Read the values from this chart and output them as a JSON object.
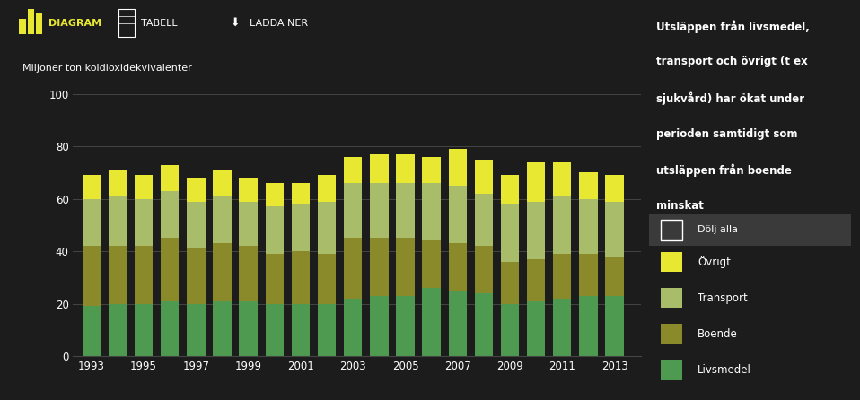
{
  "years": [
    1993,
    1994,
    1995,
    1996,
    1997,
    1998,
    1999,
    2000,
    2001,
    2002,
    2003,
    2004,
    2005,
    2006,
    2007,
    2008,
    2009,
    2010,
    2011,
    2012,
    2013
  ],
  "livsmedel": [
    19,
    20,
    20,
    21,
    20,
    21,
    21,
    20,
    20,
    20,
    22,
    23,
    23,
    26,
    25,
    24,
    20,
    21,
    22,
    23,
    23
  ],
  "boende": [
    23,
    22,
    22,
    24,
    21,
    22,
    21,
    19,
    20,
    19,
    23,
    22,
    22,
    18,
    18,
    18,
    16,
    16,
    17,
    16,
    15
  ],
  "transport": [
    18,
    19,
    18,
    18,
    18,
    18,
    17,
    18,
    18,
    20,
    21,
    21,
    21,
    22,
    22,
    20,
    22,
    22,
    22,
    21,
    21
  ],
  "ovrigt": [
    9,
    10,
    9,
    10,
    9,
    10,
    9,
    9,
    8,
    10,
    10,
    11,
    11,
    10,
    14,
    13,
    11,
    15,
    13,
    10,
    10
  ],
  "colors": {
    "livsmedel": "#4e9a51",
    "boende": "#8a8a2a",
    "transport": "#a8bc6a",
    "ovrigt": "#e8e832"
  },
  "background_color": "#1c1c1c",
  "nav_bg_color": "#2a2a2a",
  "sidebar_bg_color": "#2d2d2d",
  "plot_bg_color": "#1c1c1c",
  "text_color": "#ffffff",
  "grid_color": "#444444",
  "ylabel": "Miljoner ton koldioxidekvivalenter",
  "ylim": [
    0,
    100
  ],
  "yticks": [
    0,
    20,
    40,
    60,
    80,
    100
  ],
  "xtick_years": [
    1993,
    1995,
    1997,
    1999,
    2001,
    2003,
    2005,
    2007,
    2009,
    2011,
    2013
  ],
  "sidebar_text": [
    "Utsläppen från livsmedel,",
    "transport och övrigt (t ex",
    "sjukvård) har ökat under",
    "perioden samtidigt som",
    "utsläppen från boende",
    "minskat"
  ],
  "bar_width": 0.7
}
